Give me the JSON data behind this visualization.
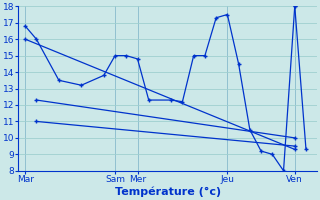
{
  "xlabel": "Température (°c)",
  "background_color": "#cce8e8",
  "grid_color": "#9fcfcf",
  "line_color": "#0033cc",
  "ylim": [
    8,
    18
  ],
  "yticks": [
    8,
    9,
    10,
    11,
    12,
    13,
    14,
    15,
    16,
    17,
    18
  ],
  "x_ticks": [
    0,
    4,
    5,
    9,
    12
  ],
  "x_tick_labels": [
    "Mar",
    "Sam",
    "Mer",
    "Jeu",
    "Ven"
  ],
  "xlim": [
    -0.3,
    13
  ],
  "line1_x": [
    0,
    0.5,
    1.5,
    2.5,
    3.5,
    4.0,
    4.5,
    5.0,
    5.5,
    6.5,
    7.0,
    7.5,
    8.0,
    8.5,
    9.0,
    9.5,
    10.0,
    10.5,
    11.0,
    11.5,
    12.0
  ],
  "line1_y": [
    16.8,
    16.0,
    13.5,
    13.2,
    13.8,
    15.0,
    15.0,
    14.8,
    12.3,
    12.3,
    12.2,
    15.0,
    15.0,
    17.3,
    17.5,
    14.5,
    10.5,
    9.2,
    9.0,
    8.0,
    18.0
  ],
  "line2_x": [
    0,
    12.0
  ],
  "line2_y": [
    16.0,
    9.3
  ],
  "line3_x": [
    0.5,
    12.0
  ],
  "line3_y": [
    12.3,
    10.0
  ],
  "line4_x": [
    0.5,
    12.0
  ],
  "line4_y": [
    11.0,
    9.5
  ],
  "line5_x": [
    12.0,
    12.5
  ],
  "line5_y": [
    18.0,
    9.3
  ]
}
